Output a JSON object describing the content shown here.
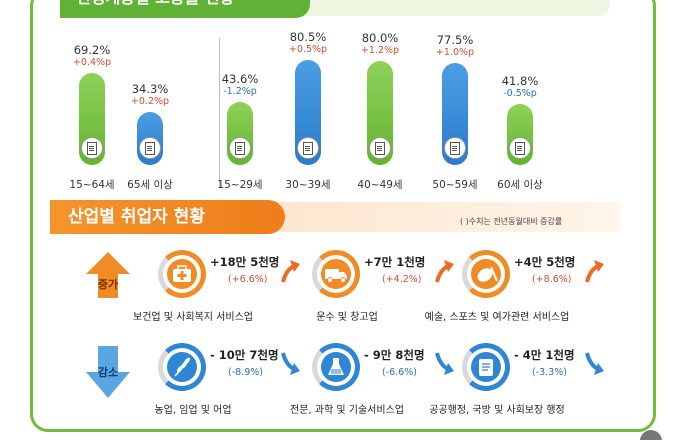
{
  "section1": {
    "title": "연령계층별 고용률 현황",
    "groups": [
      {
        "pct": "69.2%",
        "change": "+0.4%p",
        "dir": "up",
        "label": "15~64세",
        "color": "green",
        "value": 69.2
      },
      {
        "pct": "34.3%",
        "change": "+0.2%p",
        "dir": "up",
        "label": "65세 이상",
        "color": "blue",
        "value": 34.3
      },
      {
        "pct": "43.6%",
        "change": "-1.2%p",
        "dir": "down",
        "label": "15~29세",
        "color": "green",
        "value": 43.6
      },
      {
        "pct": "80.5%",
        "change": "+0.5%p",
        "dir": "up",
        "label": "30~39세",
        "color": "blue",
        "value": 80.5
      },
      {
        "pct": "80.0%",
        "change": "+1.2%p",
        "dir": "up",
        "label": "40~49세",
        "color": "green",
        "value": 80.0
      },
      {
        "pct": "77.5%",
        "change": "+1.0%p",
        "dir": "up",
        "label": "50~59세",
        "color": "blue",
        "value": 77.5
      },
      {
        "pct": "41.8%",
        "change": "-0.5%p",
        "dir": "down",
        "label": "60세 이상",
        "color": "green",
        "value": 41.8
      }
    ]
  },
  "section2": {
    "title": "산업별 취업자 현황",
    "note": "( )수치는 전년동월대비 증감률",
    "increase_label": "증가",
    "decrease_label": "감소",
    "increase": [
      {
        "value": "+18만 5천명",
        "change": "(+6.6%)",
        "name": "보건업 및 사회복지 서비스업",
        "icon": "medical-kit-icon"
      },
      {
        "value": "+7만 1천명",
        "change": "(+4.2%)",
        "name": "운수 및 창고업",
        "icon": "truck-icon"
      },
      {
        "value": "+4만 5천명",
        "change": "(+8.6%)",
        "name": "예술, 스포츠 및 여가관련 서비스업",
        "icon": "sports-ball-icon"
      }
    ],
    "decrease": [
      {
        "value": "- 10만 7천명",
        "change": "(-8.9%)",
        "name": "농업, 임업 및 어업",
        "icon": "wheat-icon"
      },
      {
        "value": "- 9만 8천명",
        "change": "(-6.6%)",
        "name": "전문, 과학 및 기술서비스업",
        "icon": "flask-icon"
      },
      {
        "value": "- 4만 1천명",
        "change": "(-3.3%)",
        "name": "공공행정, 국방 및 사회보장 행정",
        "icon": "scroll-icon"
      }
    ]
  },
  "colors": {
    "green": "#62b52e",
    "blue": "#2a7ccc",
    "orange": "#f08b26",
    "up": "#d84a2f",
    "down": "#2b6fb7"
  }
}
